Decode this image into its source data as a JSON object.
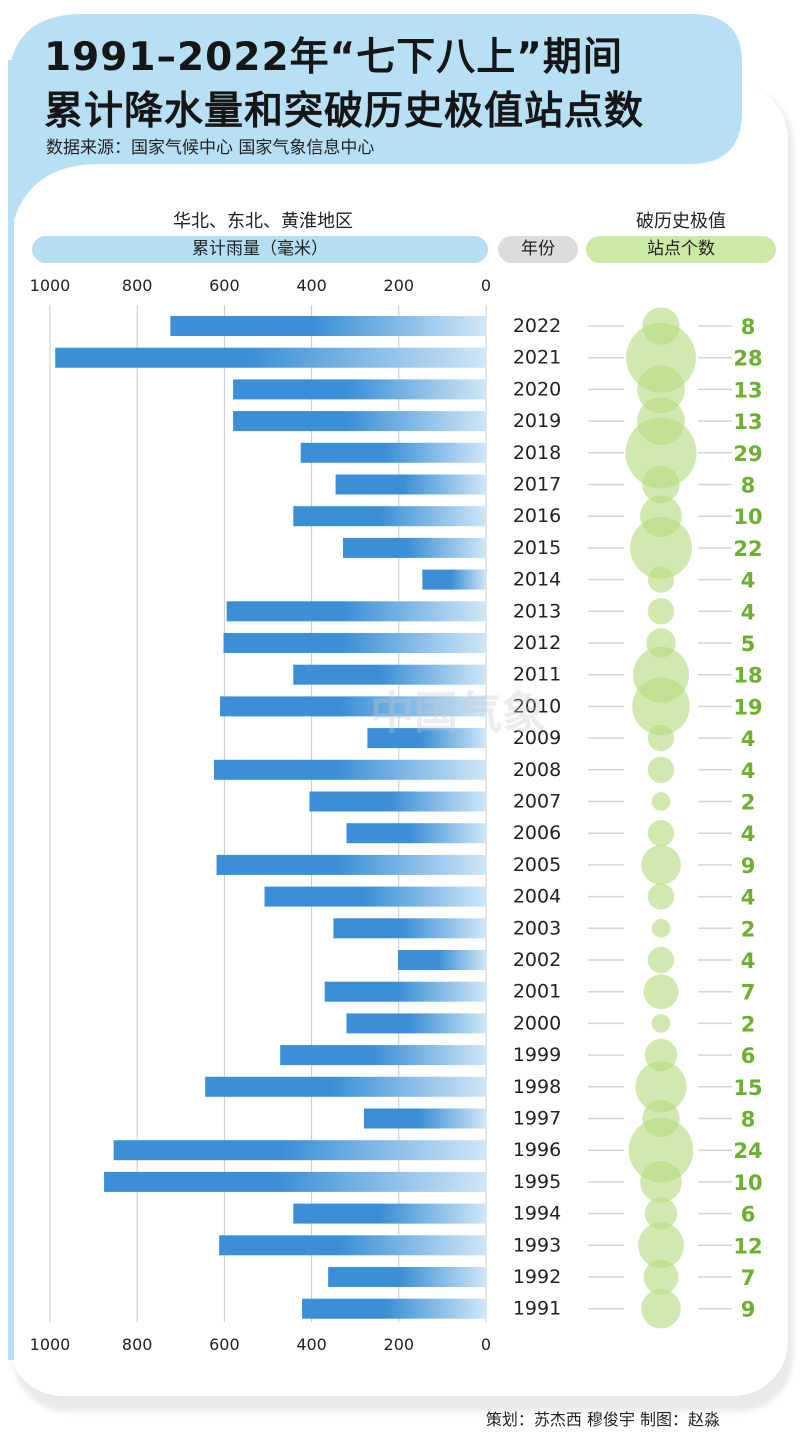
{
  "title_line1": "1991–2022年“七下八上”期间",
  "title_line2": "累计降水量和突破历史极值站点数",
  "source": "数据来源：国家气候中心 国家气象信息中心",
  "region_label": "华北、东北、黄淮地区",
  "rain_header": "累计雨量（毫米）",
  "year_header": "年份",
  "stations_header_top": "破历史极值",
  "stations_header_bottom": "站点个数",
  "credits": "策划：苏杰西 穆俊宇   制图：赵淼",
  "watermark": "中国气象",
  "colors": {
    "bar": "#3a8fd6",
    "bar_fade": "#cfe6f7",
    "bubble": "#b5dc80",
    "count": "#6bb02e",
    "title_bg": "#b8e0f5"
  },
  "chart_data": {
    "type": "bar",
    "orientation": "horizontal",
    "x_axis": {
      "ticks": [
        "1000",
        "800",
        "600",
        "400",
        "200",
        "0"
      ],
      "range": [
        0,
        1000
      ],
      "direction": "right-to-left"
    },
    "grid": true,
    "series": [
      {
        "name": "累计雨量（毫米）",
        "values": [
          724,
          988,
          580,
          580,
          425,
          345,
          442,
          328,
          146,
          595,
          602,
          442,
          610,
          272,
          624,
          405,
          320,
          618,
          508,
          350,
          202,
          370,
          320,
          472,
          644,
          280,
          854,
          876,
          442,
          612,
          362,
          422
        ]
      },
      {
        "name": "站点个数",
        "values": [
          8,
          28,
          13,
          13,
          29,
          8,
          10,
          22,
          4,
          4,
          5,
          18,
          19,
          4,
          4,
          2,
          4,
          9,
          4,
          2,
          4,
          7,
          2,
          6,
          15,
          8,
          24,
          10,
          6,
          12,
          7,
          9
        ]
      }
    ],
    "categories": [
      "2022",
      "2021",
      "2020",
      "2019",
      "2018",
      "2017",
      "2016",
      "2015",
      "2014",
      "2013",
      "2012",
      "2011",
      "2010",
      "2009",
      "2008",
      "2007",
      "2006",
      "2005",
      "2004",
      "2003",
      "2002",
      "2001",
      "2000",
      "1999",
      "1998",
      "1997",
      "1996",
      "1995",
      "1994",
      "1993",
      "1992",
      "1991"
    ]
  }
}
